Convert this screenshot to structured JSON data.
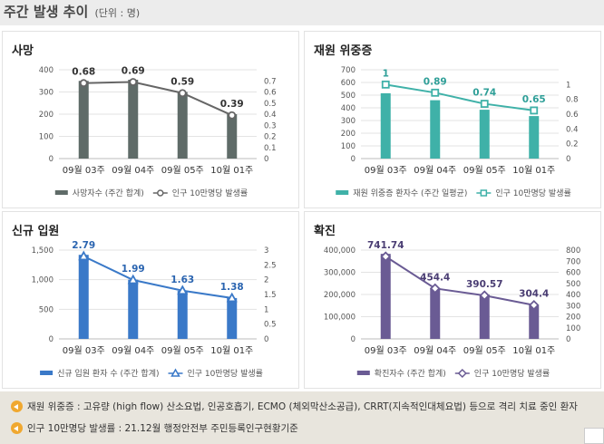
{
  "header": {
    "title": "주간 발생 추이",
    "unit": "(단위 : 명)"
  },
  "chart_data": [
    {
      "type": "bar",
      "title": "사망",
      "categories": [
        "09월 03주",
        "09월 04주",
        "09월 05주",
        "10월 01주"
      ],
      "bars": {
        "name": "사망자수 (주간 합계)",
        "values": [
          350,
          355,
          300,
          200
        ],
        "color": "#5f6b68"
      },
      "line": {
        "name": "인구 10만명당 발생률",
        "values": [
          0.68,
          0.69,
          0.59,
          0.39
        ],
        "labels": [
          "0.68",
          "0.69",
          "0.59",
          "0.39"
        ],
        "color": "#666666",
        "marker": "circle",
        "label_color": "#333333"
      },
      "y_left": {
        "min": 0,
        "max": 400,
        "ticks": [
          "0",
          "100",
          "200",
          "300",
          "400"
        ]
      },
      "y_right": {
        "min": 0,
        "max": 0.8,
        "ticks": [
          "0",
          "0.1",
          "0.2",
          "0.3",
          "0.4",
          "0.5",
          "0.6",
          "0.7"
        ],
        "tick_values": [
          0,
          0.1,
          0.2,
          0.3,
          0.4,
          0.5,
          0.6,
          0.7
        ]
      },
      "grid": true,
      "legend": "bottom"
    },
    {
      "type": "bar",
      "title": "재원 위중증",
      "categories": [
        "09월 03주",
        "09월 04주",
        "09월 05주",
        "10월 01주"
      ],
      "bars": {
        "name": "재원 위중증 환자수 (주간 일평균)",
        "values": [
          515,
          460,
          385,
          335
        ],
        "color": "#3fb1a8"
      },
      "line": {
        "name": "인구 10만명당 발생률",
        "values": [
          1.0,
          0.89,
          0.74,
          0.65
        ],
        "labels": [
          "1",
          "0.89",
          "0.74",
          "0.65"
        ],
        "color": "#3fb1a8",
        "marker": "square",
        "label_color": "#2f9f98"
      },
      "y_left": {
        "min": 0,
        "max": 700,
        "ticks": [
          "0",
          "100",
          "200",
          "300",
          "400",
          "500",
          "600",
          "700"
        ]
      },
      "y_right": {
        "min": 0,
        "max": 1.2,
        "ticks": [
          "0",
          "0.2",
          "0.4",
          "0.6",
          "0.8",
          "1"
        ],
        "tick_values": [
          0,
          0.2,
          0.4,
          0.6,
          0.8,
          1.0
        ]
      },
      "grid": true,
      "legend": "bottom"
    },
    {
      "type": "bar",
      "title": "신규 입원",
      "categories": [
        "09월 03주",
        "09월 04주",
        "09월 05주",
        "10월 01주"
      ],
      "bars": {
        "name": "신규 입원 환자 수 (주간 합계)",
        "values": [
          1420,
          1000,
          810,
          690
        ],
        "color": "#3a79c8"
      },
      "line": {
        "name": "인구 10만명당 발생률",
        "values": [
          2.79,
          1.99,
          1.63,
          1.38
        ],
        "labels": [
          "2.79",
          "1.99",
          "1.63",
          "1.38"
        ],
        "color": "#3a79c8",
        "marker": "triangle",
        "label_color": "#2a64b0"
      },
      "y_left": {
        "min": 0,
        "max": 1500,
        "ticks": [
          "0",
          "500",
          "1,000",
          "1,500"
        ]
      },
      "y_right": {
        "min": 0,
        "max": 3,
        "ticks": [
          "0",
          "0.5",
          "1",
          "1.5",
          "2",
          "2.5",
          "3"
        ],
        "tick_values": [
          0,
          0.5,
          1,
          1.5,
          2,
          2.5,
          3
        ]
      },
      "grid": true,
      "legend": "bottom"
    },
    {
      "type": "bar",
      "title": "확진",
      "categories": [
        "09월 03주",
        "09월 04주",
        "09월 05주",
        "10월 01주"
      ],
      "bars": {
        "name": "확진자수 (주간 합계)",
        "values": [
          383000,
          230000,
          200000,
          150000
        ],
        "color": "#6a5b94"
      },
      "line": {
        "name": "인구 10만명당 발생률",
        "values": [
          741.74,
          454.4,
          390.57,
          304.4
        ],
        "labels": [
          "741.74",
          "454.4",
          "390.57",
          "304.4"
        ],
        "color": "#6a5b94",
        "marker": "diamond",
        "label_color": "#4a3d73"
      },
      "y_left": {
        "min": 0,
        "max": 400000,
        "ticks": [
          "0",
          "100,000",
          "200,000",
          "300,000",
          "400,000"
        ]
      },
      "y_right": {
        "min": 0,
        "max": 800,
        "ticks": [
          "0",
          "100",
          "200",
          "300",
          "400",
          "500",
          "600",
          "700",
          "800"
        ],
        "tick_values": [
          0,
          100,
          200,
          300,
          400,
          500,
          600,
          700,
          800
        ]
      },
      "grid": true,
      "legend": "bottom"
    }
  ],
  "notes": [
    "재원 위중증 : 고유량 (high flow) 산소요법, 인공호흡기, ECMO (체외막산소공급), CRRT(지속적인대체요법) 등으로 격리 치료 중인 환자",
    "인구 10만명당 발생률 : 21.12월 행정안전부 주민등록인구현황기준"
  ]
}
